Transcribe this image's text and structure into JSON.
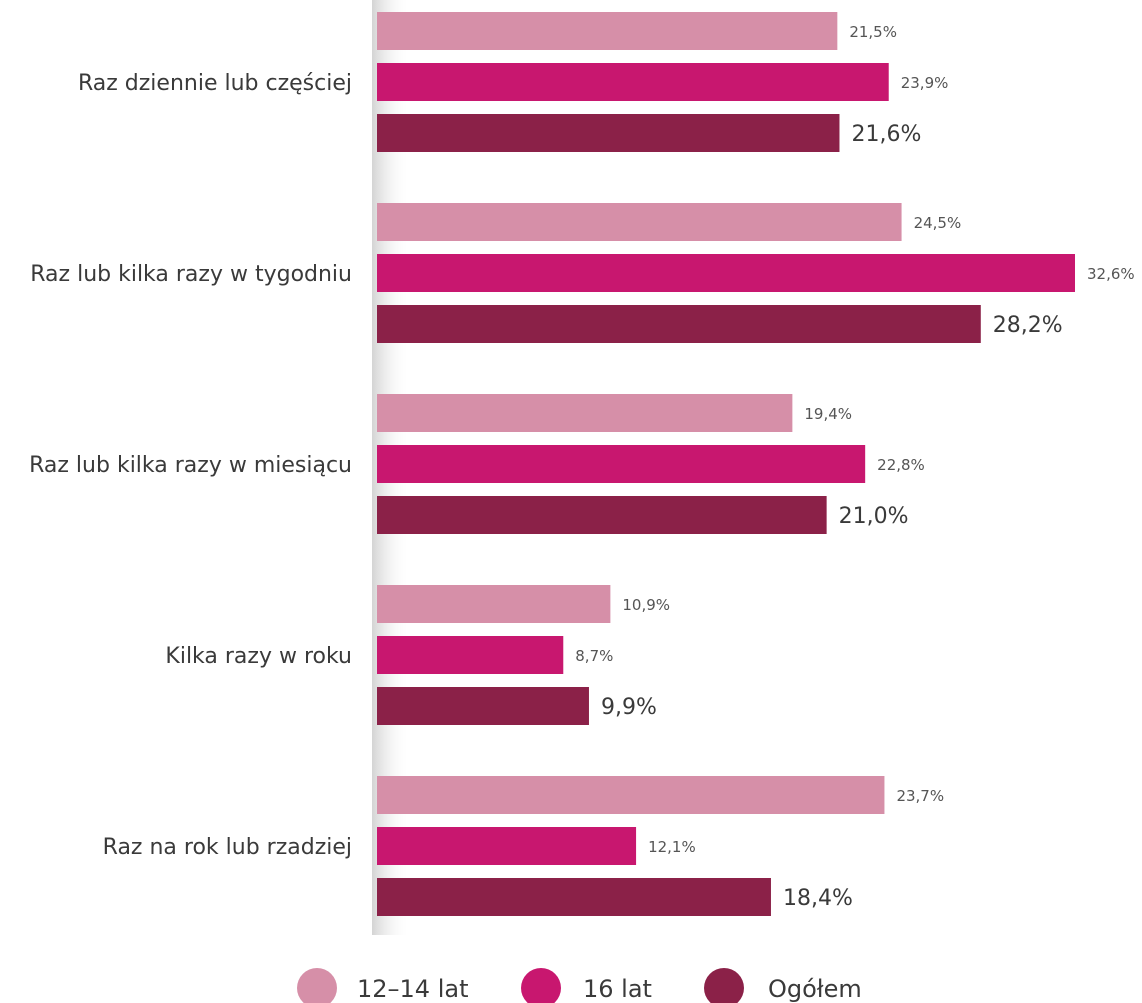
{
  "chart_data": {
    "type": "bar",
    "orientation": "horizontal",
    "categories": [
      "Raz dziennie lub częściej",
      "Raz lub kilka razy w tygodniu",
      "Raz lub kilka razy w miesiącu",
      "Kilka razy w roku",
      "Raz na rok lub rzadziej"
    ],
    "series": [
      {
        "name": "12–14 lat",
        "color": "#d68fa8",
        "values": [
          21.5,
          24.5,
          19.4,
          10.9,
          23.7
        ],
        "labels": [
          "21,5%",
          "24,5%",
          "19,4%",
          "10,9%",
          "23,7%"
        ]
      },
      {
        "name": "16 lat",
        "color": "#c8176f",
        "values": [
          23.9,
          32.6,
          22.8,
          8.7,
          12.1
        ],
        "labels": [
          "23,9%",
          "32,6%",
          "22,8%",
          "8,7%",
          "12,1%"
        ]
      },
      {
        "name": "Ogółem",
        "color": "#8b2148",
        "values": [
          21.6,
          28.2,
          21.0,
          9.9,
          18.4
        ],
        "labels": [
          "21,6%",
          "28,2%",
          "21,0%",
          "9,9%",
          "18,4%"
        ]
      }
    ],
    "xlim": [
      0,
      32.6
    ],
    "legend_position": "bottom",
    "grid": false
  }
}
